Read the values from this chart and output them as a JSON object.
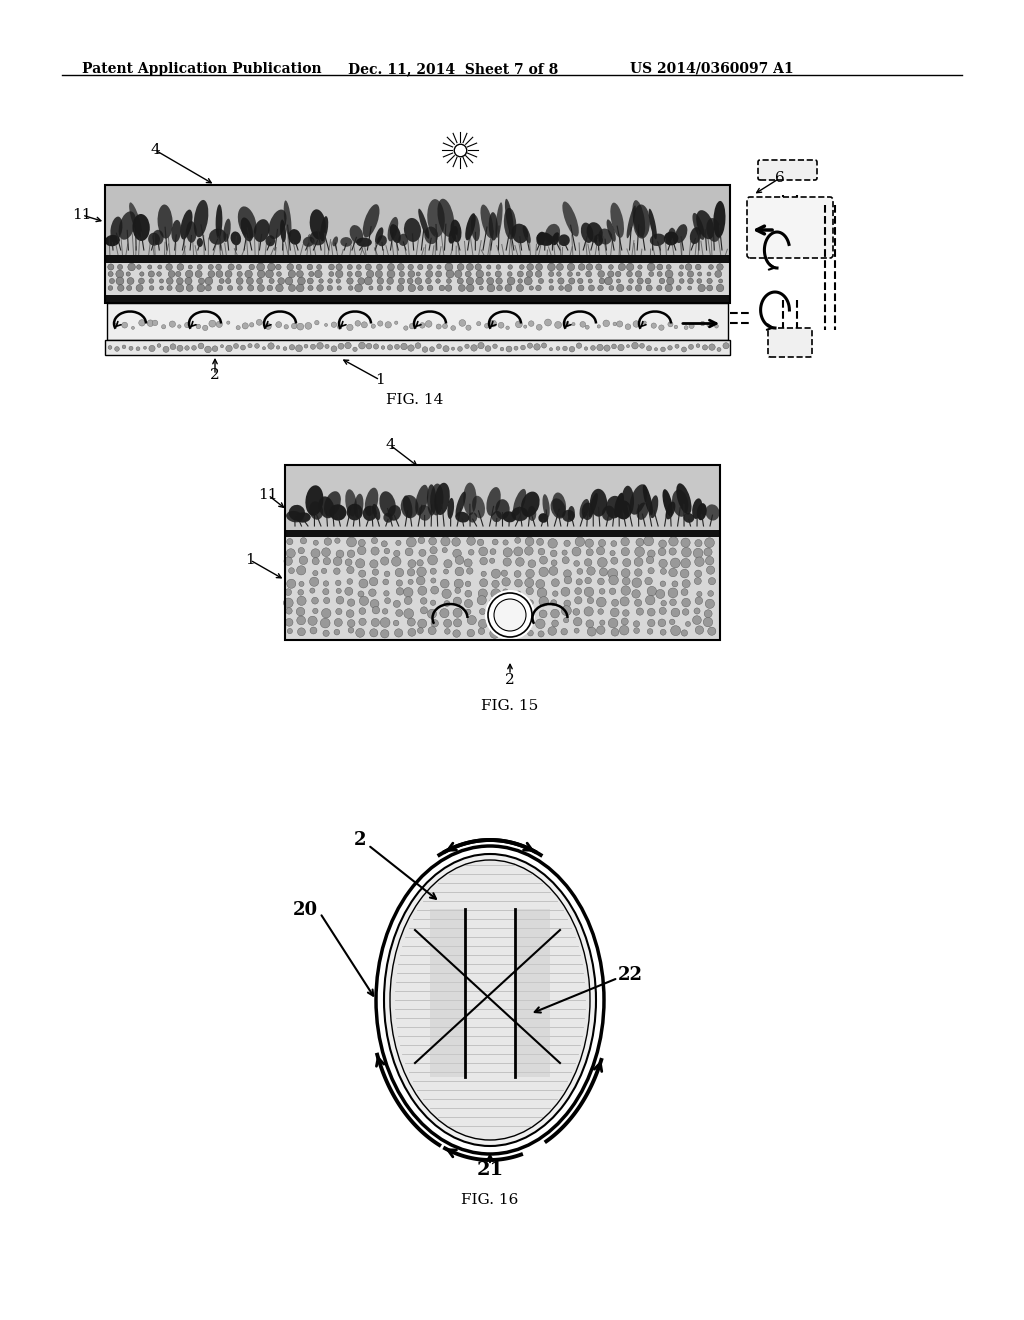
{
  "background_color": "#ffffff",
  "header_text": "Patent Application Publication",
  "header_date": "Dec. 11, 2014  Sheet 7 of 8",
  "header_patent": "US 2014/0360097 A1",
  "fig14_label": "FIG. 14",
  "fig15_label": "FIG. 15",
  "fig16_label": "FIG. 16",
  "line_color": "#000000",
  "header_font_size": 10,
  "fig_label_font_size": 11,
  "annot_font_size": 11
}
